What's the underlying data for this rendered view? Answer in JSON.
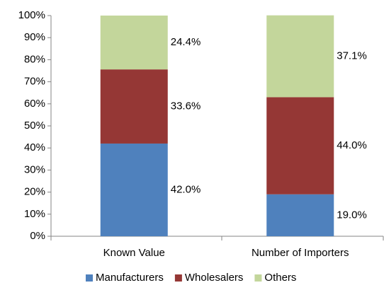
{
  "chart_data": {
    "type": "stacked_bar",
    "categories": [
      "Known Value",
      "Number of Importers"
    ],
    "series": [
      {
        "name": "Manufacturers",
        "color": "#4f81bd",
        "values": [
          42.0,
          19.0
        ],
        "value_labels": [
          "42.0%",
          "19.0%"
        ]
      },
      {
        "name": "Wholesalers",
        "color": "#953735",
        "values": [
          33.6,
          44.0
        ],
        "value_labels": [
          "33.6%",
          "44.0%"
        ]
      },
      {
        "name": "Others",
        "color": "#c3d69b",
        "values": [
          24.4,
          37.1
        ],
        "value_labels": [
          "24.4%",
          "37.1%"
        ]
      }
    ],
    "ylim": [
      0,
      100
    ],
    "yticks": [
      {
        "value": 0,
        "label": "0%"
      },
      {
        "value": 10,
        "label": "10%"
      },
      {
        "value": 20,
        "label": "20%"
      },
      {
        "value": 30,
        "label": "30%"
      },
      {
        "value": 40,
        "label": "40%"
      },
      {
        "value": 50,
        "label": "50%"
      },
      {
        "value": 60,
        "label": "60%"
      },
      {
        "value": 70,
        "label": "70%"
      },
      {
        "value": 80,
        "label": "80%"
      },
      {
        "value": 90,
        "label": "90%"
      },
      {
        "value": 100,
        "label": "100%"
      }
    ],
    "grid": false,
    "legend": "bottom"
  }
}
